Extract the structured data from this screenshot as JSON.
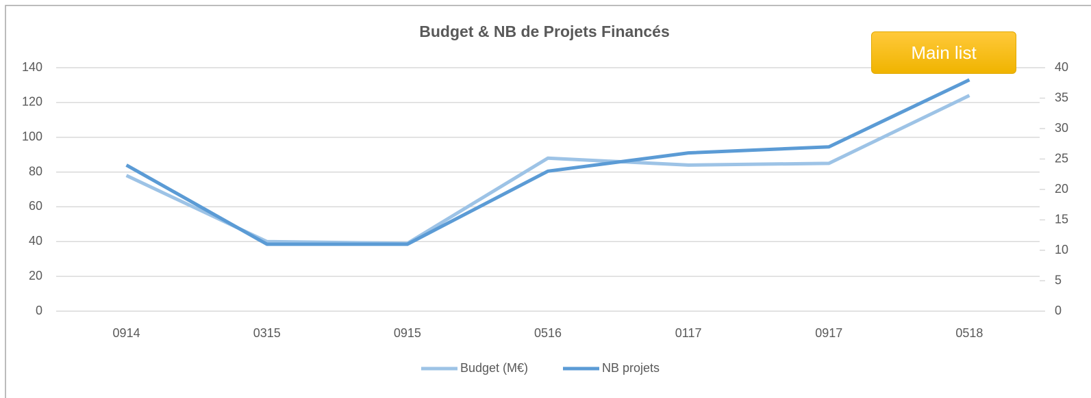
{
  "chart_data": {
    "type": "line",
    "title": "Budget & NB de Projets Financés",
    "categories": [
      "0914",
      "0315",
      "0915",
      "0516",
      "0117",
      "0917",
      "0518"
    ],
    "series": [
      {
        "name": "Budget (M€)",
        "color": "#9dc3e6",
        "values": [
          78,
          40,
          39,
          88,
          84,
          85,
          124
        ]
      },
      {
        "name": "NB projets",
        "color": "#5b9bd5",
        "axis": "y2",
        "values": [
          24,
          11,
          11,
          23,
          26,
          27,
          38
        ]
      }
    ],
    "ylim": [
      0,
      140
    ],
    "yticks": [
      0,
      20,
      40,
      60,
      80,
      100,
      120,
      140
    ],
    "y2lim": [
      0,
      40
    ],
    "y2ticks": [
      0,
      5,
      10,
      15,
      20,
      25,
      30,
      35,
      40
    ],
    "grid": true,
    "legend": "bottom"
  },
  "button": {
    "label": "Main list"
  }
}
